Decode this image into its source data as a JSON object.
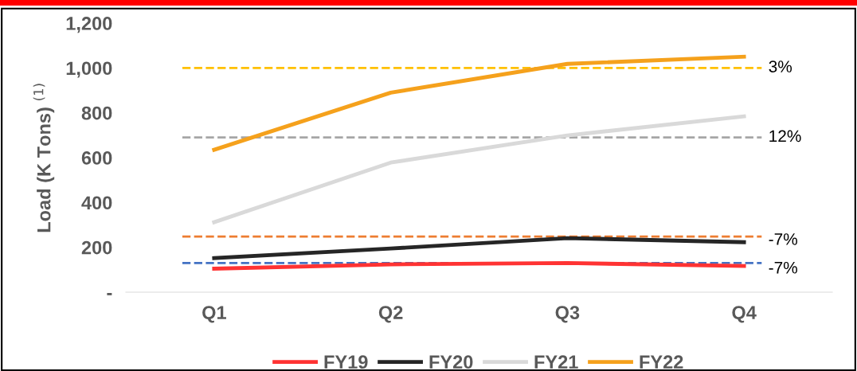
{
  "chart_data": {
    "type": "line",
    "ylabel": "Load (K Tons) $^{(1)}$",
    "categories": [
      "Q1",
      "Q2",
      "Q3",
      "Q4"
    ],
    "series": [
      {
        "name": "FY19",
        "color": "#ff3333",
        "values": [
          105,
          124,
          130,
          117
        ]
      },
      {
        "name": "FY20",
        "color": "#262626",
        "values": [
          152,
          195,
          241,
          223
        ]
      },
      {
        "name": "FY21",
        "color": "#d9d9d9",
        "values": [
          312,
          578,
          699,
          784
        ]
      },
      {
        "name": "FY22",
        "color": "#f5a11c",
        "values": [
          635,
          890,
          1018,
          1050
        ]
      }
    ],
    "ref_lines": [
      {
        "axis": "y",
        "value": 1000,
        "color": "#ffc000",
        "line_style": "dashed"
      },
      {
        "axis": "y",
        "value": 690,
        "color": "#a6a6a6",
        "line_style": "dashed"
      },
      {
        "axis": "y",
        "value": 248,
        "color": "#ed7d31",
        "line_style": "dashed"
      },
      {
        "axis": "y",
        "value": 130,
        "color": "#4472c4",
        "line_style": "dashed"
      }
    ],
    "annotations": [
      {
        "text": "3%",
        "x": "Q4",
        "y": 1000
      },
      {
        "text": "12%",
        "x": "Q4",
        "y": 690
      },
      {
        "text": "-7%",
        "x": "Q4",
        "y": 230
      },
      {
        "text": "-7%",
        "x": "Q4",
        "y": 103
      }
    ],
    "ylim": [
      0,
      1200
    ],
    "yticks": [
      {
        "value": 0,
        "label": "-"
      },
      {
        "value": 200,
        "label": "200"
      },
      {
        "value": 400,
        "label": "400"
      },
      {
        "value": 600,
        "label": "600"
      },
      {
        "value": 800,
        "label": "800"
      },
      {
        "value": 1000,
        "label": "1,000"
      },
      {
        "value": 1200,
        "label": "1,200"
      }
    ],
    "grid": false,
    "legend": "bottom",
    "marker": "none",
    "line_style": "solid"
  }
}
